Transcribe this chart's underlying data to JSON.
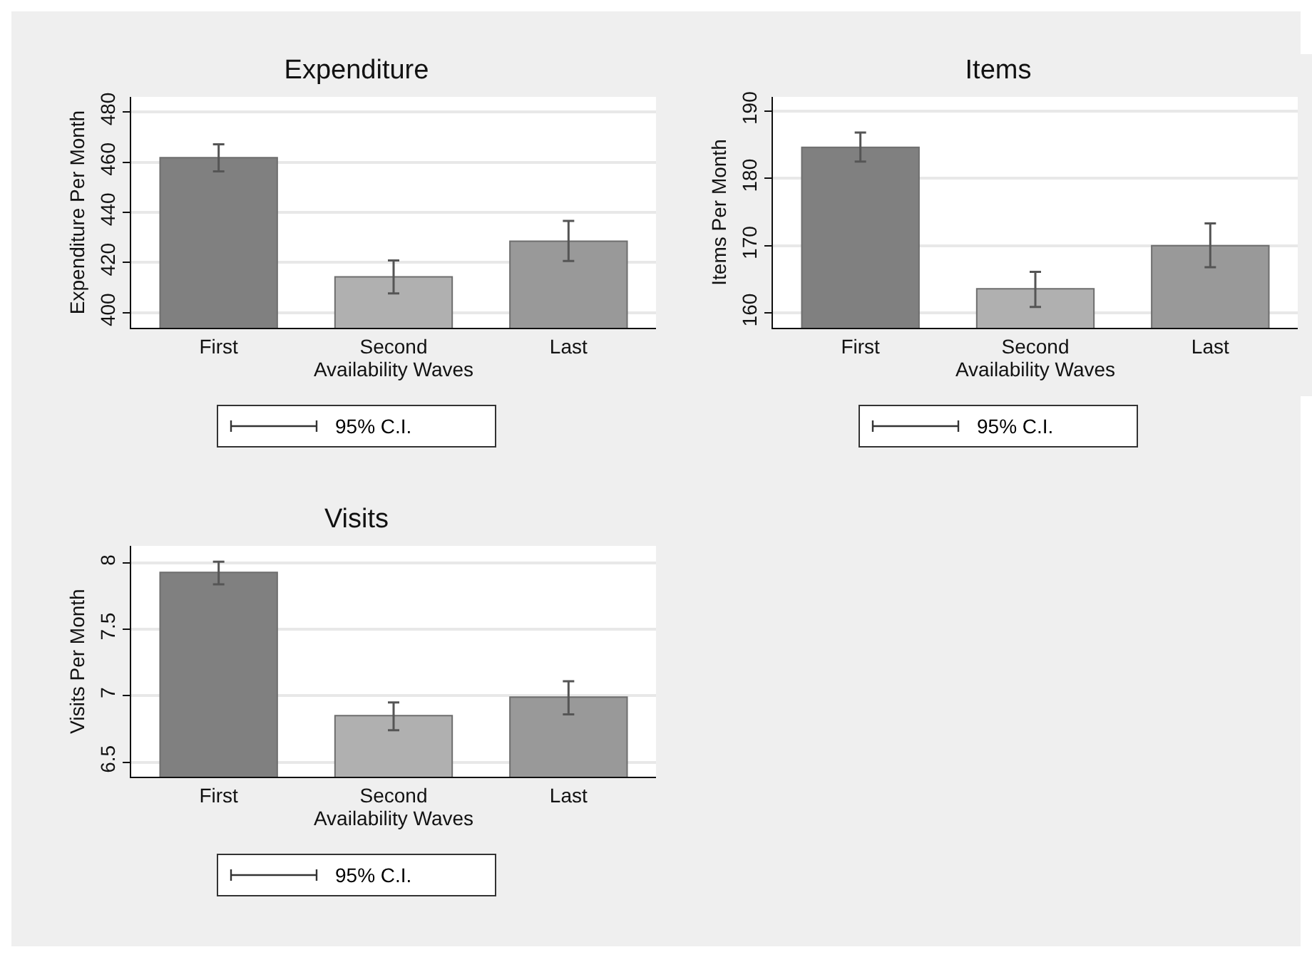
{
  "chart_data": [
    {
      "type": "bar",
      "title": "Expenditure",
      "xlabel": "Availability Waves",
      "ylabel": "Expenditure Per Month",
      "categories": [
        "First",
        "Second",
        "Last"
      ],
      "values": [
        461.8,
        414.3,
        428.5
      ],
      "colors": [
        "#808080",
        "#b0b0b0",
        "#999999"
      ],
      "errors": [
        [
          456.3,
          467.1
        ],
        [
          407.7,
          420.8
        ],
        [
          420.6,
          436.6
        ]
      ],
      "ylim": [
        394,
        486
      ],
      "yticks": [
        400,
        420,
        440,
        460,
        480
      ],
      "grid": "y",
      "annotations": [
        "95% C.I."
      ]
    },
    {
      "type": "bar",
      "title": "Items",
      "xlabel": "Availability Waves",
      "ylabel": "Items Per Month",
      "categories": [
        "First",
        "Second",
        "Last"
      ],
      "values": [
        184.6,
        163.6,
        170.0
      ],
      "colors": [
        "#808080",
        "#b0b0b0",
        "#999999"
      ],
      "errors": [
        [
          182.5,
          186.8
        ],
        [
          160.9,
          166.1
        ],
        [
          166.8,
          173.3
        ]
      ],
      "ylim": [
        157.8,
        192.1
      ],
      "yticks": [
        160,
        170,
        180,
        190
      ],
      "grid": "y",
      "annotations": [
        "95% C.I."
      ]
    },
    {
      "type": "bar",
      "title": "Visits",
      "xlabel": "Availability Waves",
      "ylabel": "Visits Per Month",
      "categories": [
        "First",
        "Second",
        "Last"
      ],
      "values": [
        7.93,
        6.85,
        6.99
      ],
      "colors": [
        "#808080",
        "#b0b0b0",
        "#999999"
      ],
      "errors": [
        [
          7.84,
          8.01
        ],
        [
          6.74,
          6.95
        ],
        [
          6.86,
          7.11
        ]
      ],
      "ylim": [
        6.39,
        8.13
      ],
      "yticks": [
        6.5,
        {
          "value": 7,
          "label": "7"
        },
        7.5,
        {
          "value": 8,
          "label": "8"
        }
      ],
      "grid": "y",
      "annotations": [
        "95% C.I."
      ]
    }
  ]
}
